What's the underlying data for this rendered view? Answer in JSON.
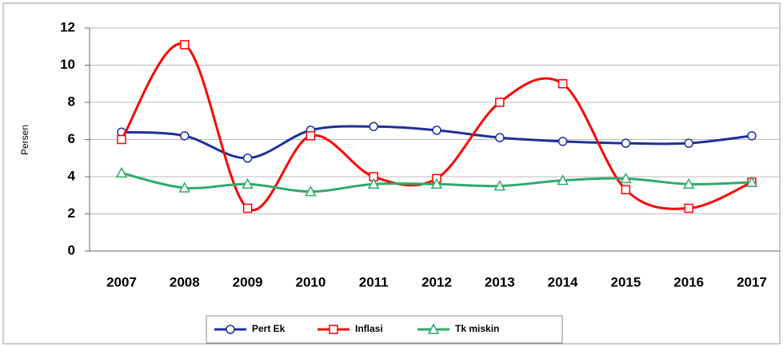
{
  "chart_data": {
    "type": "line",
    "y_label": "Persen",
    "categories": [
      "2007",
      "2008",
      "2009",
      "2010",
      "2011",
      "2012",
      "2013",
      "2014",
      "2015",
      "2016",
      "2017"
    ],
    "series": [
      {
        "name": "Pert Ek",
        "color": "#1f2f9a",
        "marker": "circle",
        "values": [
          6.4,
          6.2,
          5.0,
          6.5,
          6.7,
          6.5,
          6.1,
          5.9,
          5.8,
          5.8,
          6.2
        ]
      },
      {
        "name": "Inflasi",
        "color": "#ff0000",
        "marker": "square",
        "values": [
          6.0,
          11.1,
          2.3,
          6.2,
          4.0,
          3.9,
          8.0,
          9.0,
          3.3,
          2.3,
          3.7
        ]
      },
      {
        "name": "Tk miskin",
        "color": "#2eaa6a",
        "marker": "triangle",
        "values": [
          4.2,
          3.4,
          3.6,
          3.2,
          3.6,
          3.6,
          3.5,
          3.8,
          3.9,
          3.6,
          3.7
        ]
      }
    ],
    "ylim": [
      0,
      12
    ],
    "yticks": [
      0,
      2,
      4,
      6,
      8,
      10,
      12
    ],
    "grid": true,
    "legend": "bottom"
  }
}
